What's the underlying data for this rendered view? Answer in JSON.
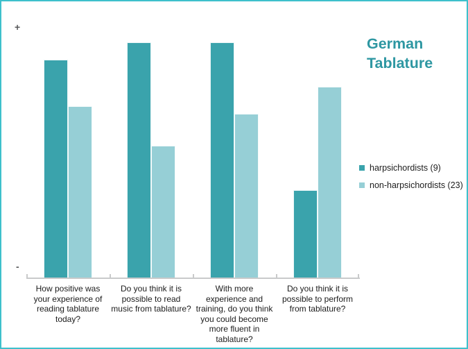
{
  "frame": {
    "border_color": "#3EC0CC",
    "background": "#FFFFFF"
  },
  "title": {
    "text": "German\nTablature",
    "color": "#2E97A2"
  },
  "axis": {
    "plus_label": "+",
    "minus_label": "-",
    "line_color": "#C9CACB"
  },
  "chart_data": {
    "type": "bar",
    "title": "German Tablature",
    "categories": [
      "How positive was\nyour experience of\nreading tablature\ntoday?",
      "Do you think it is\npossible to read\nmusic from tablature?",
      "With more\nexperience and\ntraining, do you think\nyou could become\nmore fluent in\ntablature?",
      "Do you think it is\npossible to perform\nfrom tablature?"
    ],
    "series": [
      {
        "name": "harpsichordists (9)",
        "color": "#3AA3AC",
        "values": [
          89,
          96,
          96,
          36
        ]
      },
      {
        "name": "non-harpsichordists (23)",
        "color": "#96CFD6",
        "values": [
          70,
          54,
          67,
          78
        ]
      }
    ],
    "ylim": [
      0,
      100
    ],
    "y_tick_labels": [
      "-",
      "+"
    ],
    "xlabel": "",
    "ylabel": "",
    "grid": false,
    "legend_position": "right"
  }
}
